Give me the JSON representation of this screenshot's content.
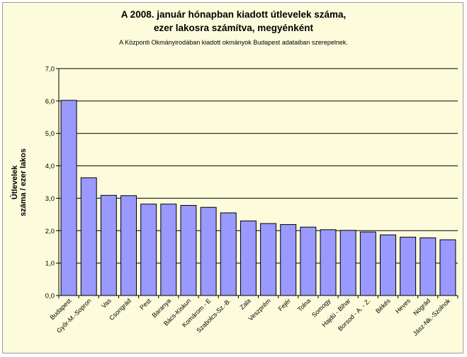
{
  "chart_data": {
    "type": "bar",
    "title": "A 2008. január hónapban kiadott útlevelek száma,",
    "title2": "ezer lakosra számítva, megyénként",
    "subtitle": "A Központi Okmányirodában kiadott okmányok Budapest adataiban szerepelnek.",
    "ylabel_line1": "Útlevelek",
    "ylabel_line2": "száma / ezer lakos",
    "ylim": [
      0,
      7
    ],
    "yticks": [
      "0,0",
      "1,0",
      "2,0",
      "3,0",
      "4,0",
      "5,0",
      "6,0",
      "7,0"
    ],
    "grid": true,
    "categories": [
      "Budapest",
      "Győr-M.-Sopron",
      "Vas",
      "Csongrád",
      "Pest",
      "Baranya",
      "Bács-Kiskun",
      "Komárom - E",
      "Szabolcs-Sz.-B.",
      "Zala",
      "Veszprém",
      "Fejér",
      "Tolna",
      "Somogy",
      "Hajdú - Bihar",
      "Borsod - A. - Z.",
      "Békés",
      "Heves",
      "Nógrád",
      "Jász-Nk.-Szolnok"
    ],
    "values": [
      6.02,
      3.63,
      3.09,
      3.08,
      2.82,
      2.82,
      2.78,
      2.72,
      2.55,
      2.3,
      2.22,
      2.19,
      2.11,
      2.03,
      2.01,
      1.96,
      1.87,
      1.8,
      1.78,
      1.72
    ],
    "bar_color": "#9999ff",
    "plot_background": "#fcfcdc"
  }
}
